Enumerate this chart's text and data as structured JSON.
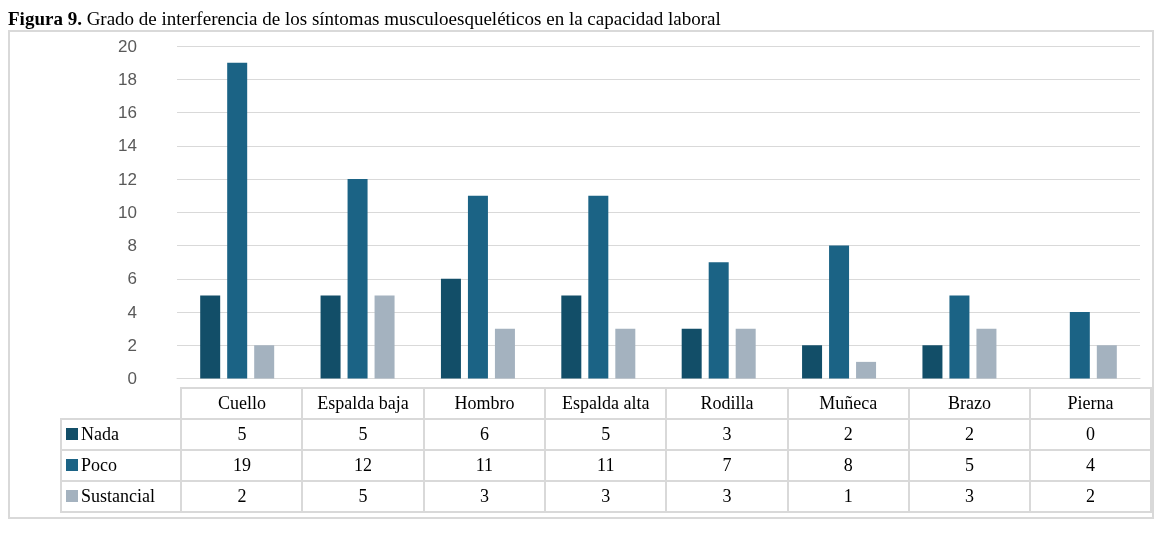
{
  "chart_data": {
    "type": "bar",
    "title": "Figura 9. Grado de interferencia de los síntomas musculoesqueléticos en la capacidad laboral",
    "categories": [
      "Cuello",
      "Espalda baja",
      "Hombro",
      "Espalda alta",
      "Rodilla",
      "Muñeca",
      "Brazo",
      "Pierna"
    ],
    "series": [
      {
        "name": "Nada",
        "color": "#124e68",
        "values": [
          5,
          5,
          6,
          5,
          3,
          2,
          2,
          0
        ]
      },
      {
        "name": "Poco",
        "color": "#1b6385",
        "values": [
          19,
          12,
          11,
          11,
          7,
          8,
          5,
          4
        ]
      },
      {
        "name": "Sustancial",
        "color": "#a4b2bf",
        "values": [
          2,
          5,
          3,
          3,
          3,
          1,
          3,
          2
        ]
      }
    ],
    "ylim": [
      0,
      20
    ],
    "yticks": [
      0,
      2,
      4,
      6,
      8,
      10,
      12,
      14,
      16,
      18,
      20
    ],
    "grid": "y",
    "legend": "bottom",
    "data_labels": true
  }
}
